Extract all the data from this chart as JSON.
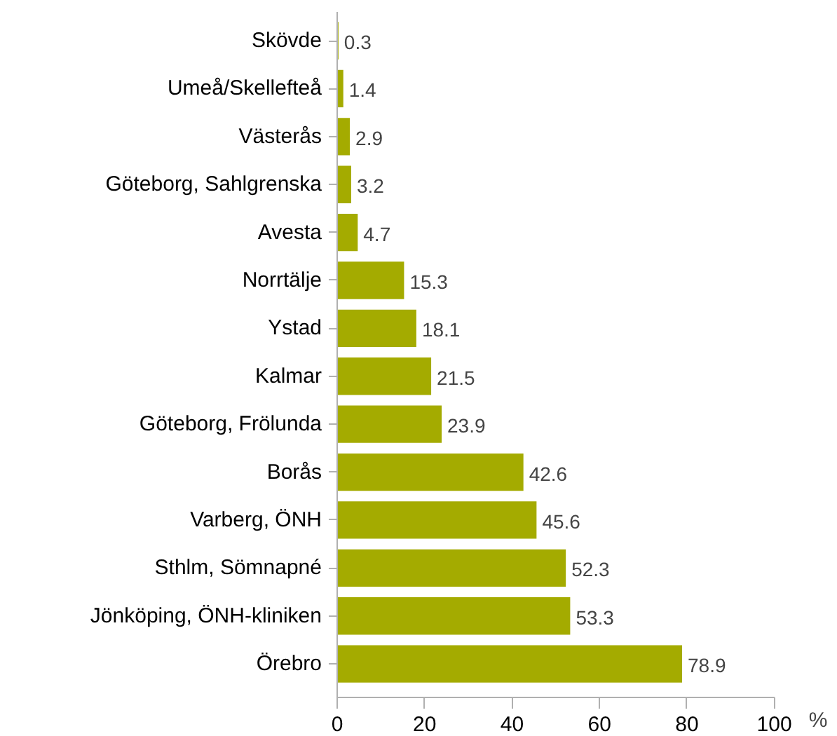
{
  "chart_data": {
    "type": "bar",
    "orientation": "horizontal",
    "xlabel": "%",
    "categories": [
      "Skövde",
      "Umeå/Skellefteå",
      "Västerås",
      "Göteborg, Sahlgrenska",
      "Avesta",
      "Norrtälje",
      "Ystad",
      "Kalmar",
      "Göteborg, Frölunda",
      "Borås",
      "Varberg, ÖNH",
      "Sthlm, Sömnapné",
      "Jönköping, ÖNH-kliniken",
      "Örebro"
    ],
    "values": [
      0.3,
      1.4,
      2.9,
      3.2,
      4.7,
      15.3,
      18.1,
      21.5,
      23.9,
      42.6,
      45.6,
      52.3,
      53.3,
      78.9
    ],
    "color": "#a4ab00",
    "xlim": [
      0,
      100
    ],
    "xticks": [
      0,
      20,
      40,
      60,
      80,
      100
    ],
    "data_labels": true,
    "grid": false
  }
}
